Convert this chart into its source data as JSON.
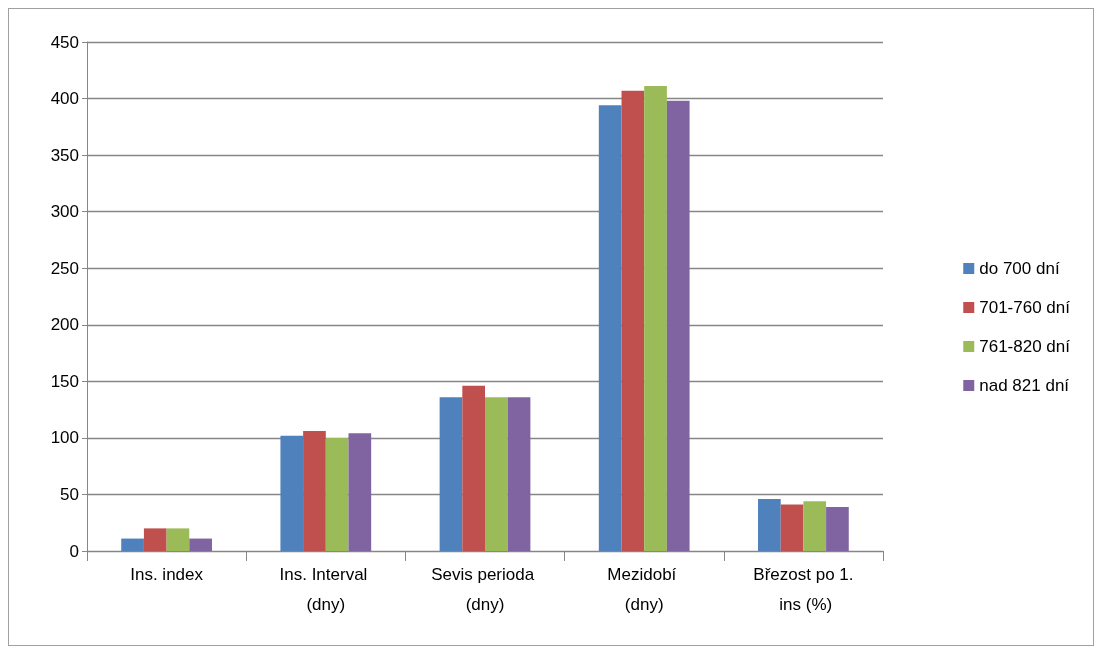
{
  "chart_data": {
    "type": "bar",
    "categories": [
      "Ins. index",
      "Ins. Interval (dny)",
      "Sevis perioda (dny)",
      "Mezidobí (dny)",
      "Březost po 1. ins (%)"
    ],
    "series": [
      {
        "name": "do 700 dní",
        "color": "#4f81bd",
        "values": [
          11,
          102,
          136,
          394,
          46
        ]
      },
      {
        "name": "701-760 dní",
        "color": "#c0504d",
        "values": [
          20,
          106,
          146,
          407,
          41
        ]
      },
      {
        "name": "761-820 dní",
        "color": "#9bbb59",
        "values": [
          20,
          100,
          136,
          411,
          44
        ]
      },
      {
        "name": "nad 821 dní",
        "color": "#8064a2",
        "values": [
          11,
          104,
          136,
          398,
          39
        ]
      }
    ],
    "ylim": [
      0,
      450
    ],
    "yticks": [
      0,
      50,
      100,
      150,
      200,
      250,
      300,
      350,
      400,
      450
    ],
    "grid": "y",
    "legend": "right"
  }
}
